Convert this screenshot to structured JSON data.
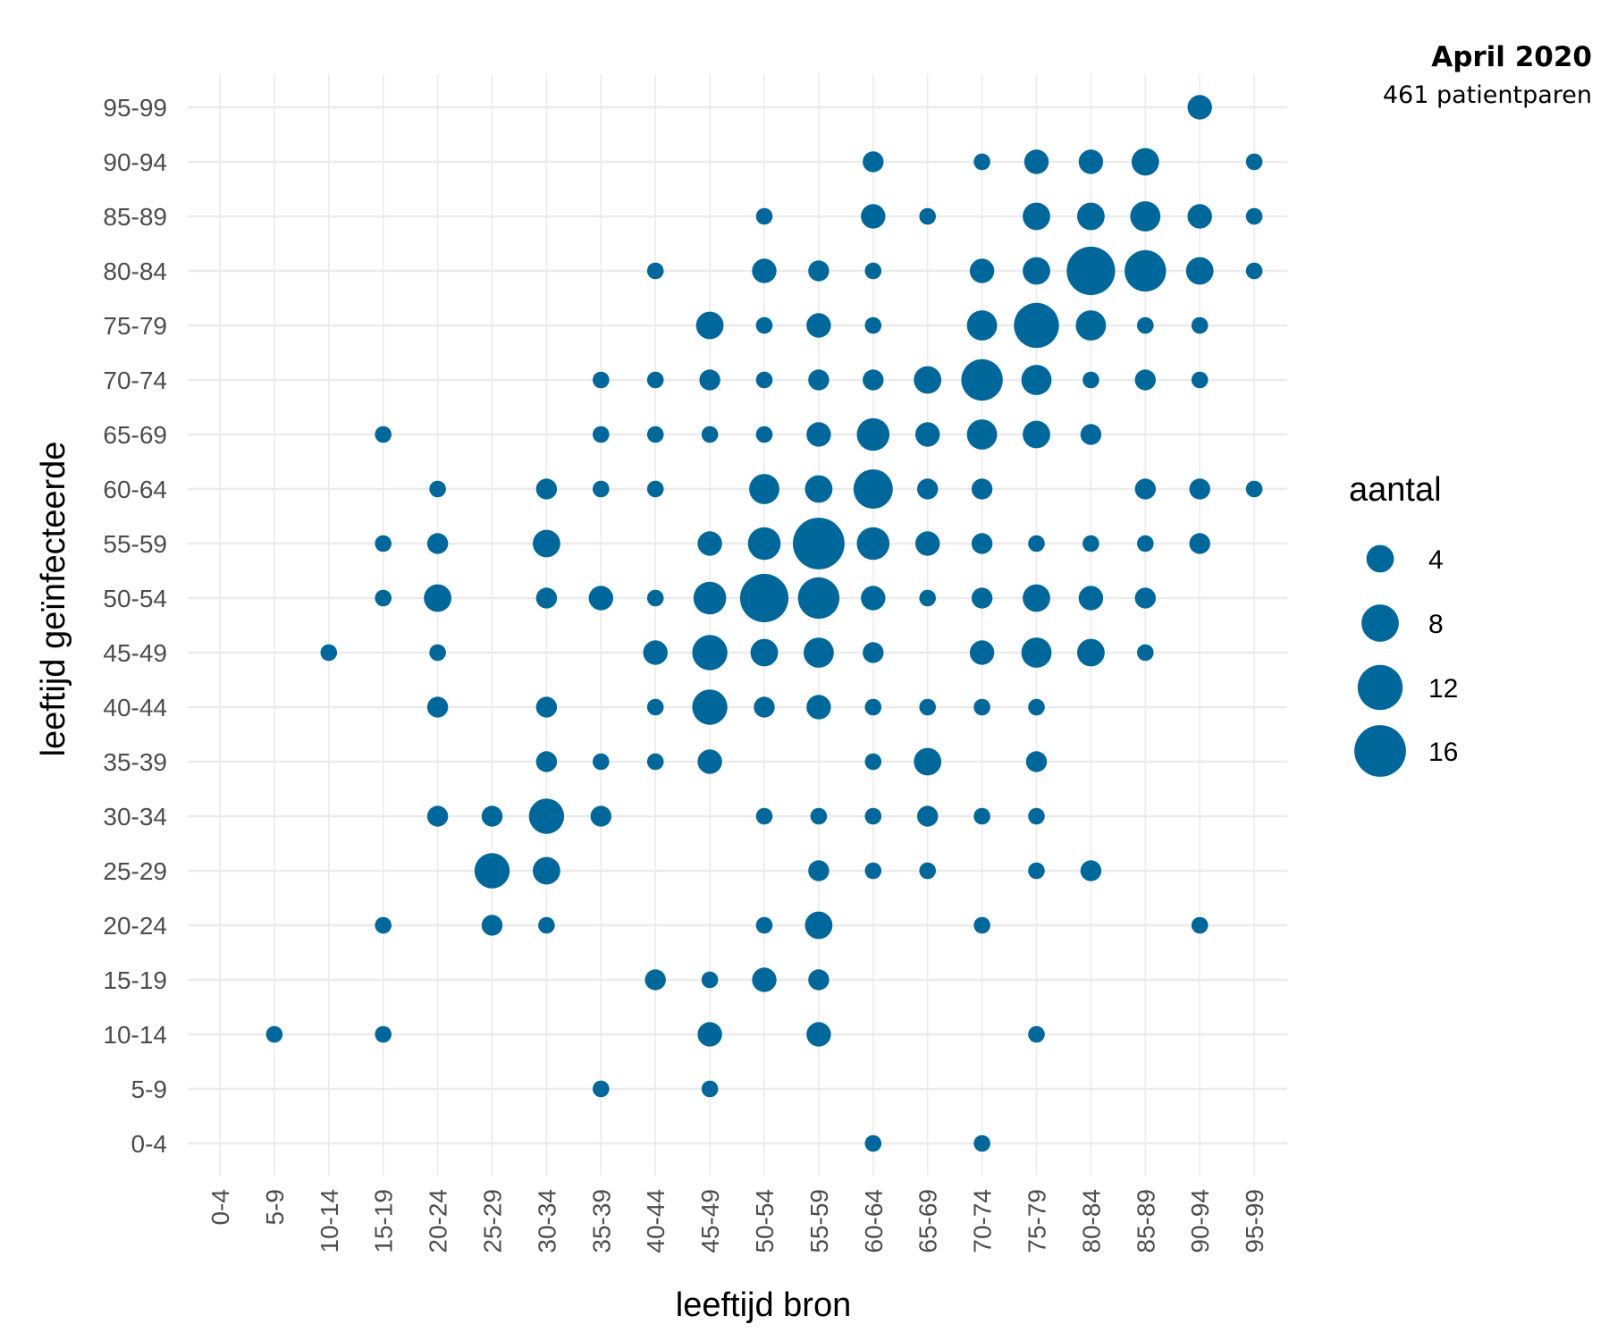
{
  "chart_data": {
    "type": "scatter",
    "title": "April 2020",
    "subtitle": "461 patientparen",
    "xlabel": "leeftijd bron",
    "ylabel": "leeftijd geïnfecteerde",
    "categories": [
      "0-4",
      "5-9",
      "10-14",
      "15-19",
      "20-24",
      "25-29",
      "30-34",
      "35-39",
      "40-44",
      "45-49",
      "50-54",
      "55-59",
      "60-64",
      "65-69",
      "70-74",
      "75-79",
      "80-84",
      "85-89",
      "90-94",
      "95-99"
    ],
    "color": "#00679a",
    "grid": true,
    "legend": {
      "title": "aantal",
      "values": [
        4,
        8,
        12,
        16
      ],
      "position": "right"
    },
    "points": [
      [
        "90-94",
        "95-99",
        3
      ],
      [
        "60-64",
        "90-94",
        2
      ],
      [
        "70-74",
        "90-94",
        1
      ],
      [
        "75-79",
        "90-94",
        3
      ],
      [
        "80-84",
        "90-94",
        3
      ],
      [
        "85-89",
        "90-94",
        4
      ],
      [
        "95-99",
        "90-94",
        1
      ],
      [
        "50-54",
        "85-89",
        1
      ],
      [
        "60-64",
        "85-89",
        3
      ],
      [
        "65-69",
        "85-89",
        1
      ],
      [
        "75-79",
        "85-89",
        4
      ],
      [
        "80-84",
        "85-89",
        4
      ],
      [
        "85-89",
        "85-89",
        5
      ],
      [
        "90-94",
        "85-89",
        3
      ],
      [
        "95-99",
        "85-89",
        1
      ],
      [
        "40-44",
        "80-84",
        1
      ],
      [
        "50-54",
        "80-84",
        3
      ],
      [
        "55-59",
        "80-84",
        2
      ],
      [
        "60-64",
        "80-84",
        1
      ],
      [
        "70-74",
        "80-84",
        3
      ],
      [
        "75-79",
        "80-84",
        4
      ],
      [
        "80-84",
        "80-84",
        14
      ],
      [
        "85-89",
        "80-84",
        10
      ],
      [
        "90-94",
        "80-84",
        4
      ],
      [
        "95-99",
        "80-84",
        1
      ],
      [
        "45-49",
        "75-79",
        4
      ],
      [
        "50-54",
        "75-79",
        1
      ],
      [
        "55-59",
        "75-79",
        3
      ],
      [
        "60-64",
        "75-79",
        1
      ],
      [
        "70-74",
        "75-79",
        5
      ],
      [
        "75-79",
        "75-79",
        12
      ],
      [
        "80-84",
        "75-79",
        5
      ],
      [
        "85-89",
        "75-79",
        1
      ],
      [
        "90-94",
        "75-79",
        1
      ],
      [
        "35-39",
        "70-74",
        1
      ],
      [
        "40-44",
        "70-74",
        1
      ],
      [
        "45-49",
        "70-74",
        2
      ],
      [
        "50-54",
        "70-74",
        1
      ],
      [
        "55-59",
        "70-74",
        2
      ],
      [
        "60-64",
        "70-74",
        2
      ],
      [
        "65-69",
        "70-74",
        4
      ],
      [
        "70-74",
        "70-74",
        10
      ],
      [
        "75-79",
        "70-74",
        5
      ],
      [
        "80-84",
        "70-74",
        1
      ],
      [
        "85-89",
        "70-74",
        2
      ],
      [
        "90-94",
        "70-74",
        1
      ],
      [
        "15-19",
        "65-69",
        1
      ],
      [
        "35-39",
        "65-69",
        1
      ],
      [
        "40-44",
        "65-69",
        1
      ],
      [
        "45-49",
        "65-69",
        1
      ],
      [
        "50-54",
        "65-69",
        1
      ],
      [
        "55-59",
        "65-69",
        3
      ],
      [
        "60-64",
        "65-69",
        6
      ],
      [
        "65-69",
        "65-69",
        3
      ],
      [
        "70-74",
        "65-69",
        5
      ],
      [
        "75-79",
        "65-69",
        4
      ],
      [
        "80-84",
        "65-69",
        2
      ],
      [
        "20-24",
        "60-64",
        1
      ],
      [
        "30-34",
        "60-64",
        2
      ],
      [
        "35-39",
        "60-64",
        1
      ],
      [
        "40-44",
        "60-64",
        1
      ],
      [
        "50-54",
        "60-64",
        5
      ],
      [
        "55-59",
        "60-64",
        4
      ],
      [
        "60-64",
        "60-64",
        9
      ],
      [
        "65-69",
        "60-64",
        2
      ],
      [
        "70-74",
        "60-64",
        2
      ],
      [
        "85-89",
        "60-64",
        2
      ],
      [
        "90-94",
        "60-64",
        2
      ],
      [
        "95-99",
        "60-64",
        1
      ],
      [
        "15-19",
        "55-59",
        1
      ],
      [
        "20-24",
        "55-59",
        2
      ],
      [
        "30-34",
        "55-59",
        4
      ],
      [
        "45-49",
        "55-59",
        3
      ],
      [
        "50-54",
        "55-59",
        6
      ],
      [
        "55-59",
        "55-59",
        16
      ],
      [
        "60-64",
        "55-59",
        6
      ],
      [
        "65-69",
        "55-59",
        3
      ],
      [
        "70-74",
        "55-59",
        2
      ],
      [
        "75-79",
        "55-59",
        1
      ],
      [
        "80-84",
        "55-59",
        1
      ],
      [
        "85-89",
        "55-59",
        1
      ],
      [
        "90-94",
        "55-59",
        2
      ],
      [
        "15-19",
        "50-54",
        1
      ],
      [
        "20-24",
        "50-54",
        4
      ],
      [
        "30-34",
        "50-54",
        2
      ],
      [
        "35-39",
        "50-54",
        3
      ],
      [
        "40-44",
        "50-54",
        1
      ],
      [
        "45-49",
        "50-54",
        6
      ],
      [
        "50-54",
        "50-54",
        14
      ],
      [
        "55-59",
        "50-54",
        10
      ],
      [
        "60-64",
        "50-54",
        3
      ],
      [
        "65-69",
        "50-54",
        1
      ],
      [
        "70-74",
        "50-54",
        2
      ],
      [
        "75-79",
        "50-54",
        4
      ],
      [
        "80-84",
        "50-54",
        3
      ],
      [
        "85-89",
        "50-54",
        2
      ],
      [
        "10-14",
        "45-49",
        1
      ],
      [
        "20-24",
        "45-49",
        1
      ],
      [
        "40-44",
        "45-49",
        3
      ],
      [
        "45-49",
        "45-49",
        7
      ],
      [
        "50-54",
        "45-49",
        4
      ],
      [
        "55-59",
        "45-49",
        5
      ],
      [
        "60-64",
        "45-49",
        2
      ],
      [
        "70-74",
        "45-49",
        3
      ],
      [
        "75-79",
        "45-49",
        5
      ],
      [
        "80-84",
        "45-49",
        4
      ],
      [
        "85-89",
        "45-49",
        1
      ],
      [
        "20-24",
        "40-44",
        2
      ],
      [
        "30-34",
        "40-44",
        2
      ],
      [
        "40-44",
        "40-44",
        1
      ],
      [
        "45-49",
        "40-44",
        7
      ],
      [
        "50-54",
        "40-44",
        2
      ],
      [
        "55-59",
        "40-44",
        3
      ],
      [
        "60-64",
        "40-44",
        1
      ],
      [
        "65-69",
        "40-44",
        1
      ],
      [
        "70-74",
        "40-44",
        1
      ],
      [
        "75-79",
        "40-44",
        1
      ],
      [
        "30-34",
        "35-39",
        2
      ],
      [
        "35-39",
        "35-39",
        1
      ],
      [
        "40-44",
        "35-39",
        1
      ],
      [
        "45-49",
        "35-39",
        3
      ],
      [
        "60-64",
        "35-39",
        1
      ],
      [
        "65-69",
        "35-39",
        4
      ],
      [
        "75-79",
        "35-39",
        2
      ],
      [
        "20-24",
        "30-34",
        2
      ],
      [
        "25-29",
        "30-34",
        2
      ],
      [
        "30-34",
        "30-34",
        7
      ],
      [
        "35-39",
        "30-34",
        2
      ],
      [
        "50-54",
        "30-34",
        1
      ],
      [
        "55-59",
        "30-34",
        1
      ],
      [
        "60-64",
        "30-34",
        1
      ],
      [
        "65-69",
        "30-34",
        2
      ],
      [
        "70-74",
        "30-34",
        1
      ],
      [
        "75-79",
        "30-34",
        1
      ],
      [
        "25-29",
        "25-29",
        7
      ],
      [
        "30-34",
        "25-29",
        4
      ],
      [
        "55-59",
        "25-29",
        2
      ],
      [
        "60-64",
        "25-29",
        1
      ],
      [
        "65-69",
        "25-29",
        1
      ],
      [
        "75-79",
        "25-29",
        1
      ],
      [
        "80-84",
        "25-29",
        2
      ],
      [
        "15-19",
        "20-24",
        1
      ],
      [
        "25-29",
        "20-24",
        2
      ],
      [
        "30-34",
        "20-24",
        1
      ],
      [
        "50-54",
        "20-24",
        1
      ],
      [
        "55-59",
        "20-24",
        4
      ],
      [
        "70-74",
        "20-24",
        1
      ],
      [
        "90-94",
        "20-24",
        1
      ],
      [
        "40-44",
        "15-19",
        2
      ],
      [
        "45-49",
        "15-19",
        1
      ],
      [
        "50-54",
        "15-19",
        3
      ],
      [
        "55-59",
        "15-19",
        2
      ],
      [
        "5-9",
        "10-14",
        1
      ],
      [
        "15-19",
        "10-14",
        1
      ],
      [
        "45-49",
        "10-14",
        3
      ],
      [
        "55-59",
        "10-14",
        3
      ],
      [
        "75-79",
        "10-14",
        1
      ],
      [
        "35-39",
        "5-9",
        1
      ],
      [
        "45-49",
        "5-9",
        1
      ],
      [
        "60-64",
        "0-4",
        1
      ],
      [
        "70-74",
        "0-4",
        1
      ]
    ]
  }
}
